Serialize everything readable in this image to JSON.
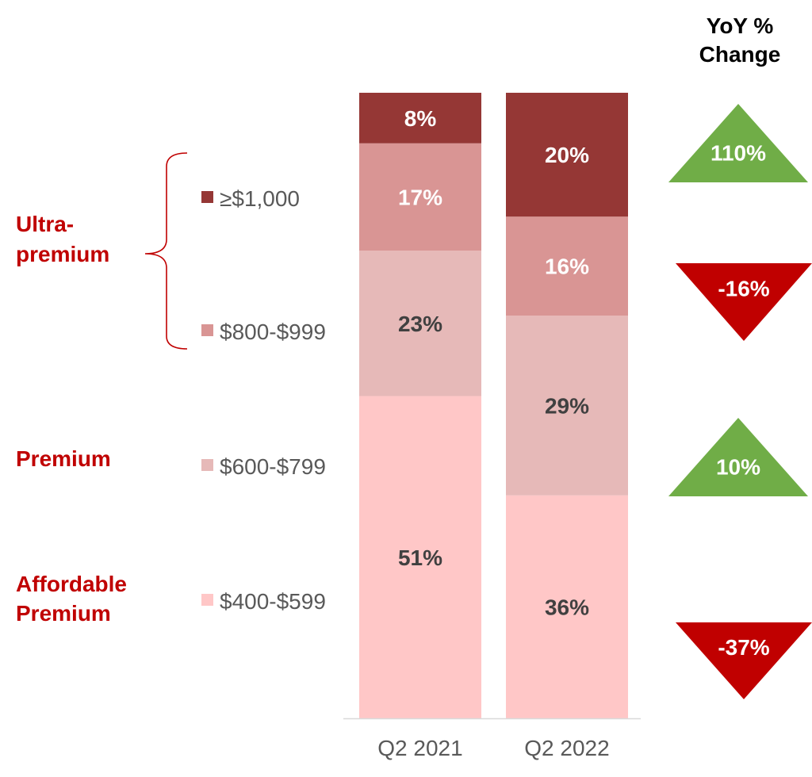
{
  "chart_data": {
    "type": "bar",
    "stacked": true,
    "percent_stacked": true,
    "categories": [
      "Q2 2021",
      "Q2 2022"
    ],
    "series": [
      {
        "name": "$400-$599",
        "values": [
          51,
          36
        ],
        "labels": [
          "51%",
          "36%"
        ],
        "color": "#ffc7c7",
        "label_color": "#404040"
      },
      {
        "name": "$600-$799",
        "values": [
          23,
          29
        ],
        "labels": [
          "23%",
          "29%"
        ],
        "color": "#e6b9b8",
        "label_color": "#404040"
      },
      {
        "name": "$800-$999",
        "values": [
          17,
          16
        ],
        "labels": [
          "17%",
          "16%"
        ],
        "color": "#d99594",
        "label_color": "#ffffff"
      },
      {
        "name": "≥$1,000",
        "values": [
          8,
          20
        ],
        "labels": [
          "8%",
          "20%"
        ],
        "color": "#953735",
        "label_color": "#ffffff"
      }
    ],
    "legend_position": "left",
    "legend_order": [
      "≥$1,000",
      "$800-$999",
      "$600-$799",
      "$400-$599"
    ],
    "groups": [
      {
        "label_lines": [
          "Ultra-",
          "premium"
        ],
        "series": [
          "≥$1,000",
          "$800-$999"
        ],
        "bracket": true
      },
      {
        "label_lines": [
          "Premium"
        ],
        "series": [
          "$600-$799"
        ],
        "bracket": false
      },
      {
        "label_lines": [
          "Affordable",
          "Premium"
        ],
        "series": [
          "$400-$599"
        ],
        "bracket": false
      }
    ],
    "yoy_header_lines": [
      "YoY %",
      "Change"
    ],
    "yoy_change": [
      {
        "series": "≥$1,000",
        "label": "110%",
        "direction": "up",
        "color": "#70ad47"
      },
      {
        "series": "$800-$999",
        "label": "-16%",
        "direction": "down",
        "color": "#c00000"
      },
      {
        "series": "$600-$799",
        "label": "10%",
        "direction": "up",
        "color": "#70ad47"
      },
      {
        "series": "$400-$599",
        "label": "-37%",
        "direction": "down",
        "color": "#c00000"
      }
    ],
    "grid": false,
    "ylim": [
      0,
      100
    ]
  }
}
